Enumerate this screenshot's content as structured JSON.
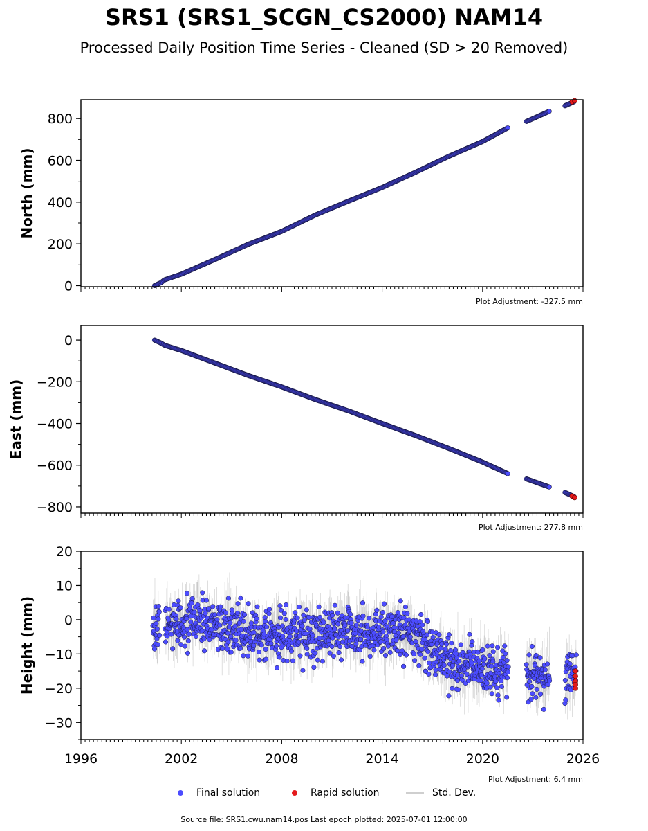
{
  "title": "SRS1 (SRS1_SCGN_CS2000) NAM14",
  "subtitle": "Processed Daily Position Time Series - Cleaned (SD > 20 Removed)",
  "colors": {
    "final": "#4c4cff",
    "rapid": "#e41a1c",
    "edge": "#1a1a44",
    "stddev": "#b0b0b0"
  },
  "legend": {
    "final": "Final solution",
    "rapid": "Rapid solution",
    "stddev": "Std. Dev."
  },
  "source": "Source file: SRS1.cwu.nam14.pos  Last epoch plotted: 2025-07-01 12:00:00",
  "chart_data": [
    {
      "type": "scatter",
      "ylabel": "North (mm)",
      "adjustment": "Plot Adjustment: -327.5 mm",
      "xlim": [
        1996,
        2026
      ],
      "ylim": [
        -5,
        890
      ],
      "yticks": [
        0,
        200,
        400,
        600,
        800
      ],
      "gaps": [
        [
          2021.55,
          2022.6
        ],
        [
          2024.0,
          2024.9
        ]
      ],
      "series": [
        {
          "x": [
            2000.4,
            2000.8,
            2001.0,
            2002.0,
            2004.0,
            2006.0,
            2008.0,
            2010.0,
            2012.0,
            2014.0,
            2016.0,
            2018.0,
            2020.0,
            2021.5,
            2022.6,
            2024.0,
            2024.9,
            2025.5
          ],
          "y": [
            0,
            15,
            28,
            55,
            125,
            198,
            260,
            338,
            405,
            470,
            543,
            620,
            690,
            755,
            785,
            835,
            860,
            882
          ]
        }
      ],
      "rapid": {
        "x": [
          2025.35,
          2025.5
        ],
        "y": [
          880,
          885
        ]
      }
    },
    {
      "type": "scatter",
      "ylabel": "East (mm)",
      "adjustment": "Plot Adjustment: 277.8 mm",
      "xlim": [
        1996,
        2026
      ],
      "ylim": [
        -830,
        70
      ],
      "yticks": [
        0,
        -200,
        -400,
        -600,
        -800
      ],
      "gaps": [
        [
          2021.55,
          2022.6
        ],
        [
          2024.0,
          2024.9
        ]
      ],
      "series": [
        {
          "x": [
            2000.4,
            2000.8,
            2001.0,
            2002.0,
            2004.0,
            2006.0,
            2008.0,
            2010.0,
            2012.0,
            2014.0,
            2016.0,
            2018.0,
            2020.0,
            2021.5,
            2022.6,
            2024.0,
            2024.9,
            2025.5
          ],
          "y": [
            0,
            -15,
            -25,
            -50,
            -110,
            -170,
            -225,
            -285,
            -340,
            -400,
            -458,
            -520,
            -585,
            -640,
            -665,
            -705,
            -730,
            -752
          ]
        }
      ],
      "rapid": {
        "x": [
          2025.35,
          2025.5
        ],
        "y": [
          -748,
          -755
        ]
      }
    },
    {
      "type": "scatter",
      "ylabel": "Height (mm)",
      "adjustment": "Plot Adjustment: 6.4 mm",
      "xlim": [
        1996,
        2026
      ],
      "ylim": [
        -35,
        20
      ],
      "yticks": [
        20,
        10,
        0,
        -10,
        -20,
        -30
      ],
      "xticks": [
        1996,
        2002,
        2008,
        2014,
        2020,
        2026
      ],
      "gaps": [
        [
          2000.7,
          2001.0
        ],
        [
          2021.55,
          2022.6
        ],
        [
          2024.0,
          2024.9
        ]
      ],
      "trend": {
        "x": [
          2000.3,
          2003.0,
          2007.0,
          2012.0,
          2016.0,
          2018.0,
          2021.5,
          2023.0,
          2025.6
        ],
        "y": [
          -2,
          0,
          -5,
          -3,
          -5,
          -13,
          -15,
          -17,
          -16
        ]
      },
      "spread": 7,
      "rapid": {
        "x": [
          2025.55,
          2025.55,
          2025.55,
          2025.55,
          2025.55
        ],
        "y": [
          -15,
          -16.5,
          -18,
          -19,
          -20
        ]
      }
    }
  ]
}
